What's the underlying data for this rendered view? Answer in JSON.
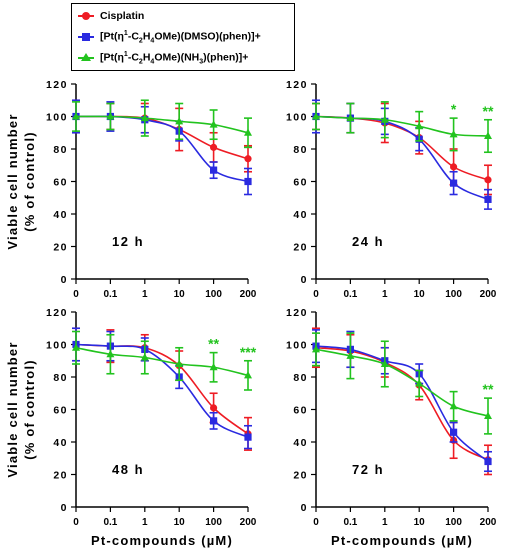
{
  "colors": {
    "cisplatin": "#ee1c24",
    "dmso": "#2a2ae0",
    "nh3": "#22c31e"
  },
  "legend": [
    {
      "label": "Cisplatin",
      "color": "#ee1c24",
      "marker": "circle"
    },
    {
      "label_parts": [
        "[Pt(η",
        "1",
        "-C",
        "2",
        "H",
        "4",
        "OMe)(DMSO)(phen)]+"
      ],
      "label": "[Pt(η1-C2H4OMe)(DMSO)(phen)]+",
      "color": "#2a2ae0",
      "marker": "square"
    },
    {
      "label_parts": [
        "[Pt(η",
        "1",
        "-C",
        "2",
        "H",
        "4",
        "OMe)(NH",
        "3",
        ")(phen)]+"
      ],
      "label": "[Pt(η1-C2H4OMe)(NH3)(phen)]+",
      "color": "#22c31e",
      "marker": "triangle"
    }
  ],
  "chart_data": [
    {
      "type": "line",
      "panel_label": "12 h",
      "x": [
        "0",
        "0.1",
        "1",
        "10",
        "100",
        "200"
      ],
      "xlabel": "",
      "ylabel": "Viable cell number (% of control)",
      "ylim": [
        0,
        120
      ],
      "yticks": [
        0,
        20,
        40,
        60,
        80,
        100,
        120
      ],
      "series": [
        {
          "name": "Cisplatin",
          "values": [
            100,
            100,
            99,
            92,
            81,
            74
          ],
          "errors": [
            10,
            8,
            9,
            13,
            9,
            8
          ],
          "significance": [
            "",
            "",
            "",
            "",
            "",
            ""
          ]
        },
        {
          "name": "[Pt(η1-C2H4OMe)(DMSO)(phen)]+",
          "values": [
            100,
            100,
            98,
            91,
            67,
            60
          ],
          "errors": [
            10,
            9,
            8,
            6,
            5,
            8
          ],
          "significance": [
            "",
            "",
            "",
            "",
            "",
            ""
          ]
        },
        {
          "name": "[Pt(η1-C2H4OMe)(NH3)(phen)]+",
          "values": [
            100,
            100,
            99,
            97,
            95,
            90
          ],
          "errors": [
            9,
            8,
            11,
            11,
            9,
            9
          ],
          "significance": [
            "",
            "",
            "",
            "",
            "",
            ""
          ]
        }
      ]
    },
    {
      "type": "line",
      "panel_label": "24 h",
      "x": [
        "0",
        "0.1",
        "1",
        "10",
        "100",
        "200"
      ],
      "xlabel": "",
      "ylabel": "",
      "ylim": [
        0,
        120
      ],
      "yticks": [
        0,
        20,
        40,
        60,
        80,
        100,
        120
      ],
      "series": [
        {
          "name": "Cisplatin",
          "values": [
            100,
            99,
            96,
            87,
            69,
            61
          ],
          "errors": [
            8,
            9,
            12,
            10,
            11,
            9
          ],
          "significance": [
            "",
            "",
            "",
            "",
            "",
            ""
          ]
        },
        {
          "name": "[Pt(η1-C2H4OMe)(DMSO)(phen)]+",
          "values": [
            100,
            99,
            97,
            86,
            59,
            49
          ],
          "errors": [
            10,
            9,
            8,
            7,
            7,
            6
          ],
          "significance": [
            "",
            "",
            "",
            "",
            "",
            ""
          ]
        },
        {
          "name": "[Pt(η1-C2H4OMe)(NH3)(phen)]+",
          "values": [
            100,
            99,
            98,
            94,
            89,
            88
          ],
          "errors": [
            8,
            9,
            11,
            9,
            10,
            10
          ],
          "significance": [
            "",
            "",
            "",
            "",
            "*",
            "**"
          ]
        }
      ]
    },
    {
      "type": "line",
      "panel_label": "48 h",
      "x": [
        "0",
        "0.1",
        "1",
        "10",
        "100",
        "200"
      ],
      "xlabel": "Pt-compounds (µM)",
      "ylabel": "Viable cell number (% of control)",
      "ylim": [
        0,
        120
      ],
      "yticks": [
        0,
        20,
        40,
        60,
        80,
        100,
        120
      ],
      "series": [
        {
          "name": "Cisplatin",
          "values": [
            100,
            99,
            98,
            87,
            61,
            45
          ],
          "errors": [
            10,
            10,
            8,
            9,
            9,
            10
          ],
          "significance": [
            "",
            "",
            "",
            "",
            "",
            ""
          ]
        },
        {
          "name": "[Pt(η1-C2H4OMe)(DMSO)(phen)]+",
          "values": [
            100,
            99,
            97,
            80,
            53,
            43
          ],
          "errors": [
            10,
            9,
            7,
            7,
            5,
            7
          ],
          "significance": [
            "",
            "",
            "",
            "",
            "",
            ""
          ]
        },
        {
          "name": "[Pt(η1-C2H4OMe)(NH3)(phen)]+",
          "values": [
            98,
            94,
            92,
            88,
            86,
            81
          ],
          "errors": [
            10,
            12,
            10,
            10,
            9,
            9
          ],
          "significance": [
            "",
            "",
            "",
            "",
            "**",
            "***"
          ]
        }
      ]
    },
    {
      "type": "line",
      "panel_label": "72 h",
      "x": [
        "0",
        "0.1",
        "1",
        "10",
        "100",
        "200"
      ],
      "xlabel": "Pt-compounds (µM)",
      "ylabel": "",
      "ylim": [
        0,
        120
      ],
      "yticks": [
        0,
        20,
        40,
        60,
        80,
        100,
        120
      ],
      "series": [
        {
          "name": "Cisplatin",
          "values": [
            98,
            96,
            89,
            75,
            41,
            29
          ],
          "errors": [
            12,
            10,
            9,
            9,
            11,
            9
          ],
          "significance": [
            "",
            "",
            "",
            "",
            "",
            ""
          ]
        },
        {
          "name": "[Pt(η1-C2H4OMe)(DMSO)(phen)]+",
          "values": [
            99,
            97,
            90,
            82,
            46,
            28
          ],
          "errors": [
            10,
            11,
            8,
            6,
            6,
            6
          ],
          "significance": [
            "",
            "",
            "",
            "",
            "",
            ""
          ]
        },
        {
          "name": "[Pt(η1-C2H4OMe)(NH3)(phen)]+",
          "values": [
            97,
            93,
            88,
            76,
            62,
            56
          ],
          "errors": [
            10,
            14,
            14,
            8,
            9,
            11
          ],
          "significance": [
            "",
            "",
            "",
            "",
            "",
            "**"
          ]
        }
      ]
    }
  ]
}
